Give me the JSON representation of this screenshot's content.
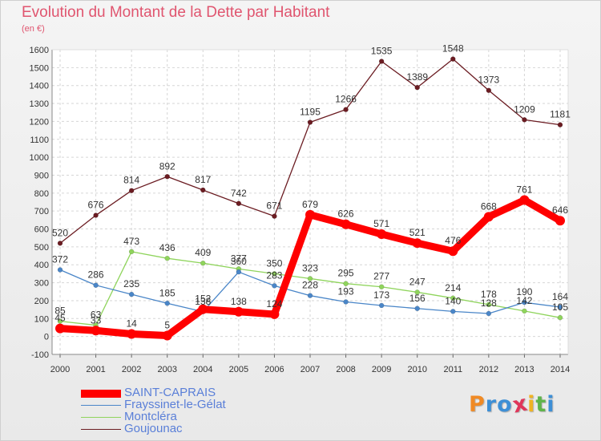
{
  "header": {
    "title": "Evolution du Montant de la Dette par Habitant",
    "unit": "(en €)"
  },
  "logo": {
    "letters": [
      "P",
      "r",
      "o",
      "x",
      "i",
      "t",
      "i"
    ],
    "colors": [
      "#f08a24",
      "#3d8fd6",
      "#3d8fd6",
      "#e0365a",
      "#f0b323",
      "#5fb44a",
      "#3d8fd6"
    ]
  },
  "chart_data": {
    "type": "line",
    "title": "Evolution du Montant de la Dette par Habitant",
    "ylabel": "(en €)",
    "x": [
      "2000",
      "2001",
      "2002",
      "2003",
      "2004",
      "2005",
      "2006",
      "2007",
      "2008",
      "2009",
      "2010",
      "2011",
      "2012",
      "2013",
      "2014"
    ],
    "ylim": [
      -100,
      1600
    ],
    "yticks": [
      "-100",
      "0",
      "100",
      "200",
      "300",
      "400",
      "500",
      "600",
      "700",
      "800",
      "900",
      "1000",
      "1100",
      "1200",
      "1300",
      "1400",
      "1500",
      "1600"
    ],
    "grid": true,
    "legend_position": "bottom-left",
    "series": [
      {
        "name": "SAINT-CAPRAIS",
        "color": "#ff0000",
        "values": [
          45,
          33,
          14,
          5,
          152,
          138,
          124,
          679,
          626,
          571,
          521,
          476,
          668,
          761,
          646
        ],
        "labels": [
          "45",
          "33",
          "14",
          "5",
          "152",
          "138",
          "124",
          "679",
          "626",
          "571",
          "521",
          "476",
          "668",
          "761",
          "646"
        ]
      },
      {
        "name": "Frayssinet-le-Gélat",
        "color": "#4a86c8",
        "values": [
          372,
          286,
          235,
          185,
          138,
          360,
          283,
          228,
          193,
          173,
          156,
          140,
          128,
          190,
          164
        ],
        "labels": [
          "372",
          "286",
          "235",
          "185",
          "138",
          "360",
          "283",
          "228",
          "193",
          "173",
          "156",
          "140",
          "128",
          "190",
          "164"
        ]
      },
      {
        "name": "Montcléra",
        "color": "#8fd45c",
        "values": [
          85,
          63,
          473,
          436,
          409,
          377,
          350,
          323,
          295,
          277,
          247,
          214,
          178,
          142,
          105
        ],
        "labels": [
          "85",
          "63",
          "473",
          "436",
          "409",
          "377",
          "350",
          "323",
          "295",
          "277",
          "247",
          "214",
          "178",
          "142",
          "105"
        ]
      },
      {
        "name": "Goujounac",
        "color": "#6b1c22",
        "values": [
          520,
          676,
          814,
          892,
          817,
          742,
          671,
          1195,
          1266,
          1535,
          1389,
          1548,
          1373,
          1209,
          1181
        ],
        "labels": [
          "520",
          "676",
          "814",
          "892",
          "817",
          "742",
          "671",
          "1195",
          "1266",
          "1535",
          "1389",
          "1548",
          "1373",
          "1209",
          "1181"
        ]
      }
    ]
  }
}
